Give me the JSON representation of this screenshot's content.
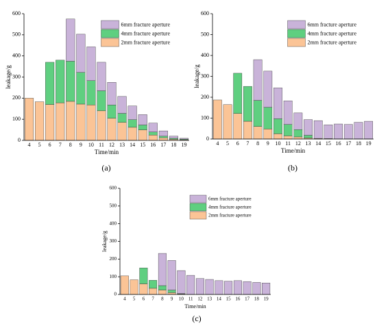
{
  "chart_data": [
    {
      "type": "bar",
      "stacked": true,
      "caption": "(a)",
      "xlabel": "Time/min",
      "ylabel": "leakage/g",
      "categories": [
        "4",
        "5",
        "6",
        "7",
        "8",
        "9",
        "10",
        "11",
        "12",
        "13",
        "14",
        "15",
        "16",
        "17",
        "18",
        "19"
      ],
      "series": [
        {
          "name": "2mm fracture aperture",
          "color": "#fbc496",
          "values": [
            200,
            183,
            170,
            178,
            185,
            172,
            168,
            140,
            105,
            85,
            62,
            50,
            25,
            12,
            5,
            3
          ]
        },
        {
          "name": "4mm fracture aperture",
          "color": "#5fcf80",
          "values": [
            0,
            0,
            200,
            202,
            190,
            150,
            115,
            95,
            63,
            43,
            36,
            23,
            15,
            8,
            5,
            3
          ]
        },
        {
          "name": "6mm fracture aperture",
          "color": "#c9b3d9",
          "values": [
            0,
            0,
            0,
            0,
            200,
            181,
            160,
            135,
            107,
            80,
            65,
            49,
            42,
            25,
            10,
            4
          ]
        }
      ],
      "ylim": [
        0,
        600
      ],
      "yticks": [
        0,
        100,
        200,
        300,
        400,
        500,
        600
      ],
      "legend": "upper right"
    },
    {
      "type": "bar",
      "stacked": true,
      "caption": "(b)",
      "xlabel": "Time/min",
      "ylabel": "leakage/g",
      "categories": [
        "4",
        "5",
        "6",
        "7",
        "8",
        "9",
        "10",
        "11",
        "12",
        "13",
        "14",
        "15",
        "16",
        "17",
        "18",
        "19"
      ],
      "series": [
        {
          "name": "2mm fracture aperture",
          "color": "#fbc496",
          "values": [
            187,
            165,
            122,
            85,
            60,
            48,
            25,
            15,
            10,
            5,
            3,
            2,
            1,
            1,
            1,
            1
          ]
        },
        {
          "name": "4mm fracture aperture",
          "color": "#5fcf80",
          "values": [
            0,
            0,
            193,
            167,
            125,
            104,
            72,
            55,
            35,
            13,
            0,
            0,
            0,
            0,
            0,
            0
          ]
        },
        {
          "name": "6mm fracture aperture",
          "color": "#c9b3d9",
          "values": [
            0,
            0,
            0,
            0,
            195,
            173,
            148,
            113,
            80,
            75,
            85,
            66,
            71,
            69,
            79,
            84
          ]
        }
      ],
      "ylim": [
        0,
        600
      ],
      "yticks": [
        0,
        100,
        200,
        300,
        400,
        500,
        600
      ],
      "legend": "upper right"
    },
    {
      "type": "bar",
      "stacked": true,
      "caption": "(c)",
      "xlabel": "Time/min",
      "ylabel": "leakage/g",
      "categories": [
        "4",
        "5",
        "6",
        "7",
        "8",
        "9",
        "10",
        "11",
        "12",
        "13",
        "14",
        "15",
        "16",
        "17",
        "18",
        "19"
      ],
      "series": [
        {
          "name": "2mm fracture aperture",
          "color": "#fbc496",
          "values": [
            105,
            83,
            60,
            35,
            25,
            10,
            3,
            0,
            0,
            0,
            0,
            0,
            0,
            0,
            0,
            0
          ]
        },
        {
          "name": "4mm fracture aperture",
          "color": "#5fcf80",
          "values": [
            0,
            0,
            90,
            45,
            25,
            15,
            2,
            0,
            0,
            0,
            0,
            0,
            0,
            0,
            0,
            0
          ]
        },
        {
          "name": "6mm fracture aperture",
          "color": "#c9b3d9",
          "values": [
            0,
            0,
            0,
            0,
            182,
            167,
            130,
            108,
            90,
            85,
            78,
            75,
            78,
            73,
            68,
            65
          ]
        }
      ],
      "ylim": [
        0,
        600
      ],
      "yticks": [
        0,
        100,
        200,
        300,
        400,
        500,
        600
      ],
      "legend": "upper right"
    }
  ]
}
